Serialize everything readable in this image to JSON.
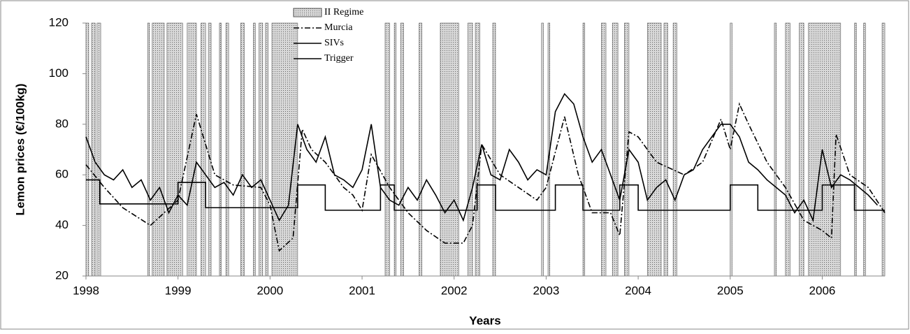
{
  "chart_data": {
    "type": "line",
    "y_label": "Lemon prices (€/100kg)",
    "x_label": "Years",
    "xlim": [
      1998,
      2006.68
    ],
    "xticks": [
      1998,
      1999,
      2000,
      2001,
      2002,
      2003,
      2004,
      2005,
      2006
    ],
    "ylim": [
      20,
      120
    ],
    "yticks": [
      20,
      40,
      60,
      80,
      100,
      120
    ],
    "regimes": {
      "name": "II Regime",
      "color": "#bbbbbb",
      "intervals": [
        [
          1998.0,
          1998.03
        ],
        [
          1998.06,
          1998.1
        ],
        [
          1998.12,
          1998.16
        ],
        [
          1998.67,
          1998.69
        ],
        [
          1998.72,
          1998.85
        ],
        [
          1998.88,
          1999.05
        ],
        [
          1999.1,
          1999.2
        ],
        [
          1999.25,
          1999.3
        ],
        [
          1999.33,
          1999.36
        ],
        [
          1999.45,
          1999.47
        ],
        [
          1999.52,
          1999.55
        ],
        [
          1999.68,
          1999.72
        ],
        [
          1999.82,
          1999.84
        ],
        [
          1999.88,
          1999.92
        ],
        [
          1999.95,
          1999.98
        ],
        [
          2000.02,
          2000.3
        ],
        [
          2001.25,
          2001.3
        ],
        [
          2001.35,
          2001.37
        ],
        [
          2001.42,
          2001.45
        ],
        [
          2001.62,
          2001.65
        ],
        [
          2001.85,
          2002.05
        ],
        [
          2002.15,
          2002.2
        ],
        [
          2002.23,
          2002.28
        ],
        [
          2002.42,
          2002.45
        ],
        [
          2002.95,
          2002.97
        ],
        [
          2003.02,
          2003.04
        ],
        [
          2003.4,
          2003.42
        ],
        [
          2003.6,
          2003.65
        ],
        [
          2003.72,
          2003.78
        ],
        [
          2003.85,
          2003.9
        ],
        [
          2004.1,
          2004.25
        ],
        [
          2004.28,
          2004.32
        ],
        [
          2004.38,
          2004.42
        ],
        [
          2005.0,
          2005.02
        ],
        [
          2005.48,
          2005.5
        ],
        [
          2005.6,
          2005.65
        ],
        [
          2005.75,
          2005.8
        ],
        [
          2005.85,
          2006.2
        ],
        [
          2006.35,
          2006.37
        ],
        [
          2006.45,
          2006.47
        ],
        [
          2006.65,
          2006.68
        ]
      ]
    },
    "series": [
      {
        "name": "Murcia",
        "color": "#000000",
        "dash": "8 3 2 3",
        "x": [
          1998.0,
          1998.2,
          1998.4,
          1998.7,
          1999.0,
          1999.2,
          1999.4,
          1999.6,
          1999.9,
          2000.0,
          2000.1,
          2000.25,
          2000.35,
          2000.45,
          2000.6,
          2000.7,
          2000.8,
          2000.9,
          2001.0,
          2001.1,
          2001.3,
          2001.5,
          2001.7,
          2001.9,
          2002.1,
          2002.2,
          2002.3,
          2002.5,
          2002.7,
          2002.9,
          2003.0,
          2003.2,
          2003.35,
          2003.5,
          2003.7,
          2003.8,
          2003.9,
          2004.0,
          2004.2,
          2004.5,
          2004.7,
          2004.9,
          2005.0,
          2005.1,
          2005.2,
          2005.4,
          2005.6,
          2005.8,
          2006.0,
          2006.1,
          2006.15,
          2006.3,
          2006.5,
          2006.68
        ],
        "values": [
          64,
          55,
          47,
          40,
          50,
          84,
          60,
          56,
          55,
          48,
          30,
          35,
          78,
          70,
          65,
          60,
          55,
          52,
          46,
          68,
          55,
          45,
          38,
          33,
          33,
          40,
          72,
          60,
          55,
          50,
          55,
          83,
          60,
          45,
          45,
          36,
          77,
          75,
          65,
          60,
          65,
          82,
          70,
          88,
          80,
          65,
          55,
          42,
          38,
          35,
          76,
          60,
          55,
          45
        ]
      },
      {
        "name": "SIVs",
        "color": "#000000",
        "dash": "",
        "x": [
          1998.0,
          1998.1,
          1998.2,
          1998.3,
          1998.4,
          1998.5,
          1998.6,
          1998.7,
          1998.8,
          1998.9,
          1999.0,
          1999.1,
          1999.2,
          1999.3,
          1999.4,
          1999.5,
          1999.6,
          1999.7,
          1999.8,
          1999.9,
          2000.0,
          2000.1,
          2000.2,
          2000.3,
          2000.4,
          2000.5,
          2000.6,
          2000.7,
          2000.8,
          2000.9,
          2001.0,
          2001.1,
          2001.2,
          2001.3,
          2001.4,
          2001.5,
          2001.6,
          2001.7,
          2001.8,
          2001.9,
          2002.0,
          2002.1,
          2002.2,
          2002.3,
          2002.4,
          2002.5,
          2002.6,
          2002.7,
          2002.8,
          2002.9,
          2003.0,
          2003.1,
          2003.2,
          2003.3,
          2003.4,
          2003.5,
          2003.6,
          2003.7,
          2003.8,
          2003.9,
          2004.0,
          2004.1,
          2004.2,
          2004.3,
          2004.4,
          2004.5,
          2004.6,
          2004.7,
          2004.8,
          2004.9,
          2005.0,
          2005.1,
          2005.2,
          2005.3,
          2005.4,
          2005.5,
          2005.6,
          2005.7,
          2005.8,
          2005.9,
          2006.0,
          2006.1,
          2006.2,
          2006.3,
          2006.4,
          2006.5,
          2006.6
        ],
        "values": [
          75,
          65,
          60,
          58,
          62,
          55,
          58,
          50,
          55,
          45,
          52,
          48,
          65,
          60,
          55,
          57,
          52,
          60,
          55,
          58,
          50,
          42,
          48,
          80,
          70,
          65,
          75,
          60,
          58,
          55,
          62,
          80,
          55,
          50,
          48,
          55,
          50,
          58,
          52,
          45,
          50,
          42,
          55,
          72,
          60,
          58,
          70,
          65,
          58,
          62,
          60,
          85,
          92,
          88,
          75,
          65,
          70,
          60,
          50,
          70,
          65,
          50,
          55,
          58,
          50,
          60,
          62,
          70,
          75,
          80,
          80,
          75,
          65,
          62,
          58,
          55,
          52,
          45,
          50,
          42,
          70,
          55,
          60,
          58,
          55,
          52,
          48
        ]
      },
      {
        "name": "Trigger",
        "color": "#000000",
        "dash": "",
        "x": [
          1998,
          1998.15,
          1998.15,
          1999.0,
          1999.0,
          1999.3,
          1999.3,
          2000.3,
          2000.3,
          2000.6,
          2000.6,
          2001.2,
          2001.2,
          2001.35,
          2001.35,
          2002.25,
          2002.25,
          2002.45,
          2002.45,
          2003.1,
          2003.1,
          2003.4,
          2003.4,
          2003.8,
          2003.8,
          2004.0,
          2004.0,
          2005.0,
          2005.0,
          2005.3,
          2005.3,
          2006.0,
          2006.0,
          2006.35,
          2006.35,
          2006.68
        ],
        "values": [
          58,
          58,
          48.5,
          48.5,
          57,
          57,
          47,
          47,
          56,
          56,
          46,
          46,
          56,
          56,
          46,
          46,
          56,
          56,
          46,
          46,
          56,
          56,
          46,
          46,
          56,
          56,
          46,
          46,
          56,
          56,
          46,
          46,
          56,
          56,
          46,
          46
        ]
      }
    ]
  }
}
